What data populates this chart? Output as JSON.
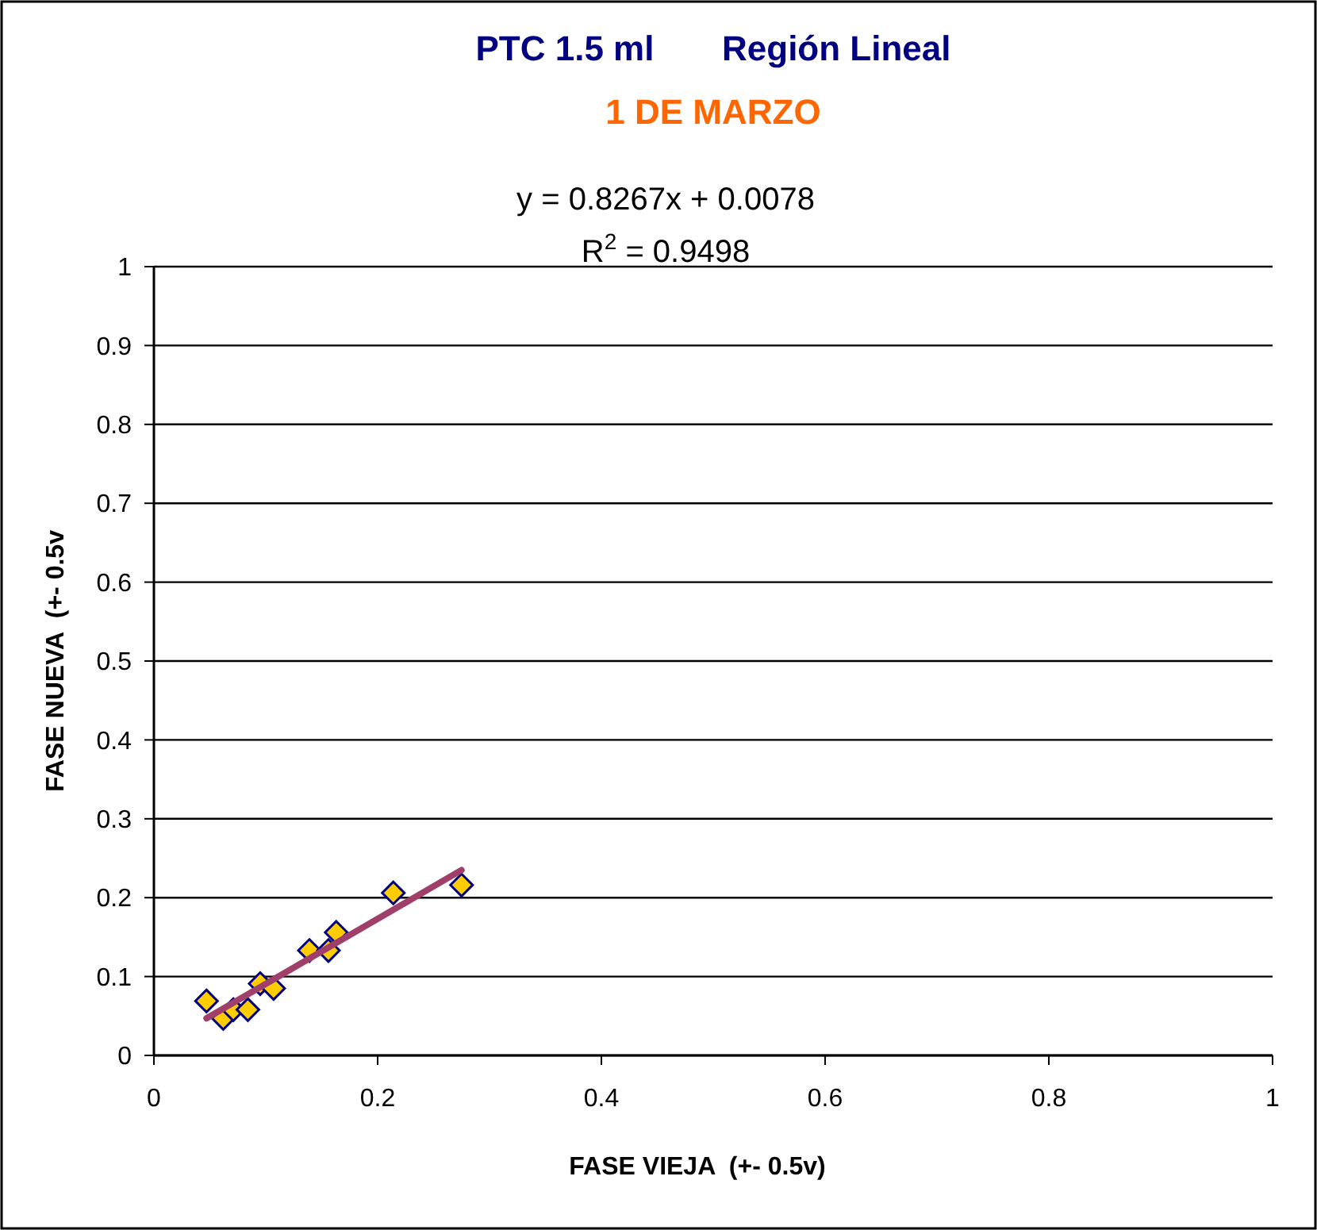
{
  "chart_data": {
    "type": "scatter",
    "title": "PTC 1.5 ml       Región Lineal",
    "subtitle": "1 DE MARZO",
    "xlabel": "FASE VIEJA  (+- 0.5v)",
    "ylabel": "FASE NUEVA  (+- 0.5v",
    "annotations": [
      "y = 0.8267x + 0.0078",
      "R$^{2}$ = 0.9498"
    ],
    "xlim": [
      0,
      1
    ],
    "xticks": [
      0,
      0.2,
      0.4,
      0.6,
      0.8,
      1
    ],
    "ylim": [
      0,
      1
    ],
    "yticks": [
      0,
      0.1,
      0.2,
      0.3,
      0.4,
      0.5,
      0.6,
      0.7,
      0.8,
      0.9,
      1
    ],
    "grid": "y",
    "series": [
      {
        "color": "#ffcc00",
        "marker": "diamond",
        "x": [
          0.047,
          0.062,
          0.071,
          0.084,
          0.095,
          0.107,
          0.139,
          0.156,
          0.163,
          0.214,
          0.275
        ],
        "values": [
          0.069,
          0.047,
          0.058,
          0.058,
          0.091,
          0.085,
          0.133,
          0.133,
          0.156,
          0.206,
          0.216
        ]
      },
      {
        "type": "line",
        "color": "#a0406a",
        "marker": "none",
        "line_style": "solid",
        "x": [
          0.047,
          0.275
        ],
        "values": [
          0.047,
          0.235
        ]
      }
    ]
  }
}
